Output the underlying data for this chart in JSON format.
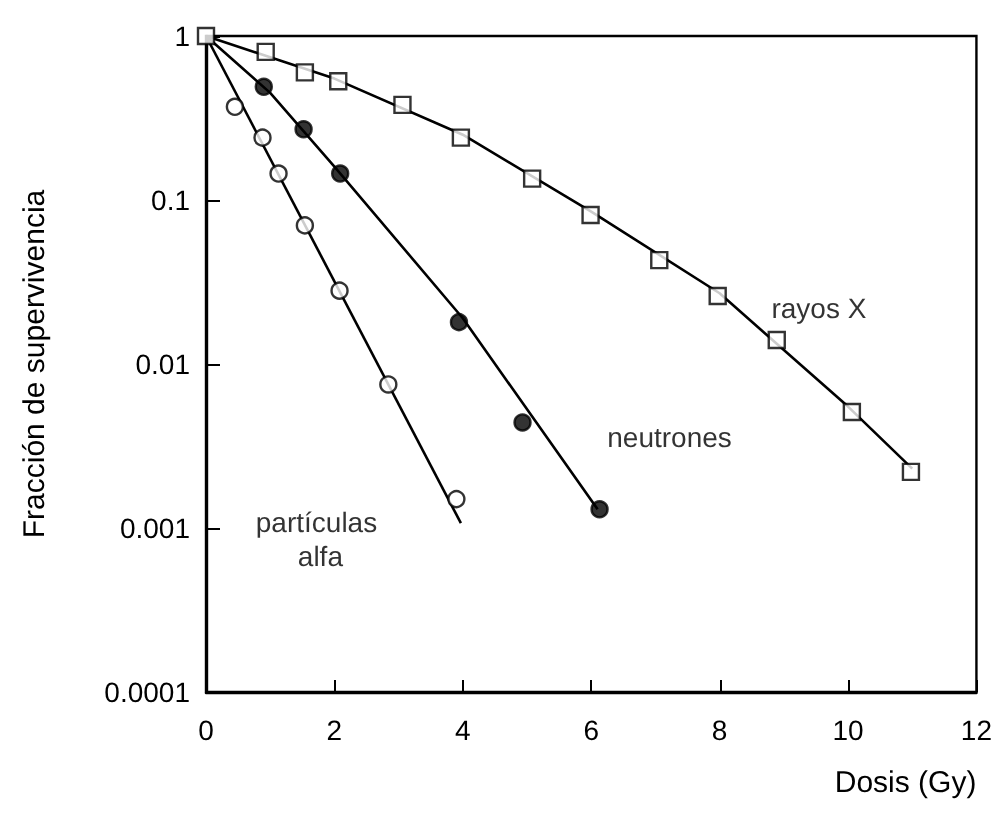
{
  "chart_data": {
    "type": "scatter",
    "xlabel": "Dosis (Gy)",
    "ylabel": "Fracción de supervivencia",
    "log": "y",
    "grid": false,
    "legend": false,
    "xlim": [
      0,
      12
    ],
    "xticks": [
      0,
      2,
      4,
      6,
      8,
      10,
      12
    ],
    "ylim": [
      0.0001,
      1
    ],
    "yticks": [
      0.0001,
      0.001,
      0.01,
      0.1,
      1
    ],
    "series": [
      {
        "name": "rayos X",
        "color": "#ffffff",
        "marker": "square",
        "x": [
          0,
          0.93,
          1.54,
          2.06,
          3.06,
          3.97,
          5.08,
          5.99,
          7.06,
          7.97,
          8.89,
          10.06,
          10.98
        ],
        "values": [
          1,
          0.8,
          0.6,
          0.53,
          0.38,
          0.24,
          0.135,
          0.081,
          0.043,
          0.026,
          0.014,
          0.0051,
          0.0022
        ]
      },
      {
        "name": "neutrones",
        "color": "#000000",
        "marker": "circle",
        "x": [
          0.9,
          1.52,
          2.09,
          3.94,
          4.93,
          6.13
        ],
        "values": [
          0.49,
          0.27,
          0.145,
          0.018,
          0.0044,
          0.0013
        ]
      },
      {
        "name": "partículas alfa",
        "color": "#ffffff",
        "marker": "circle",
        "x": [
          0.45,
          0.88,
          1.13,
          1.54,
          2.08,
          2.84,
          3.9
        ],
        "values": [
          0.37,
          0.24,
          0.145,
          0.07,
          0.028,
          0.0075,
          0.0015
        ]
      },
      {
        "type": "line",
        "color": "#000000",
        "marker": "none",
        "x": [
          0,
          2,
          4,
          6,
          8,
          10,
          11
        ],
        "values": [
          1,
          0.55,
          0.25,
          0.085,
          0.027,
          0.0055,
          0.0023
        ]
      },
      {
        "type": "line",
        "color": "#000000",
        "marker": "none",
        "x": [
          0,
          1,
          2,
          4,
          6.1
        ],
        "values": [
          1,
          0.45,
          0.16,
          0.019,
          0.0013
        ]
      },
      {
        "type": "line",
        "color": "#000000",
        "marker": "none",
        "x": [
          0,
          3.97
        ],
        "values": [
          1,
          0.00107
        ]
      }
    ]
  }
}
